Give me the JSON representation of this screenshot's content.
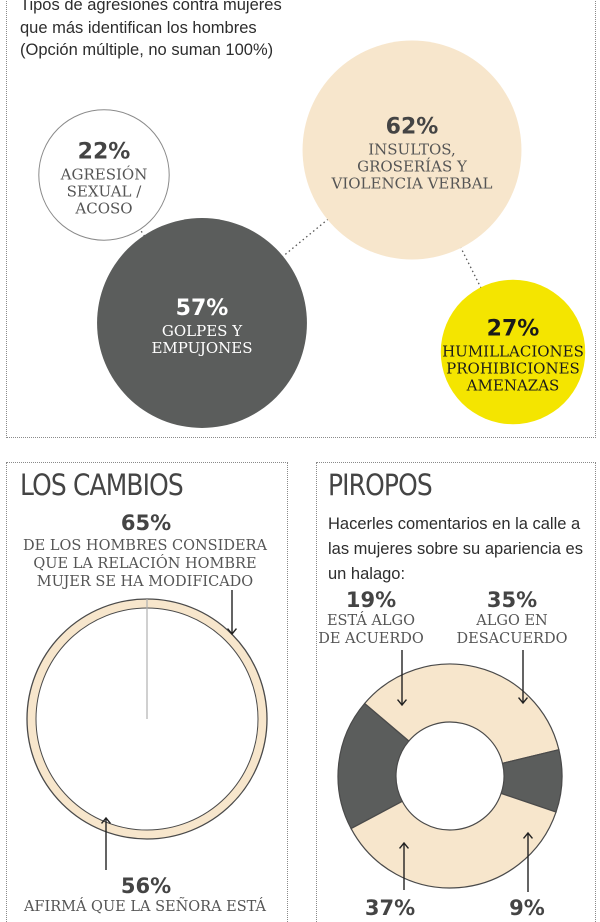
{
  "intro": "Tipos de agresiones contra mujeres que más identifican los hombres (Opción múltiple, no suman 100%)",
  "colors": {
    "beige": "#f7e6cc",
    "gray": "#5b5d5c",
    "yellow": "#f4e500",
    "white": "#ffffff"
  },
  "chart_data": [
    {
      "type": "bubble",
      "title": "",
      "items": [
        {
          "value": 22,
          "label": "22%",
          "lines": [
            "AGRESIÓN",
            "SEXUAL /",
            "ACOSO"
          ],
          "color": "#ffffff"
        },
        {
          "value": 62,
          "label": "62%",
          "lines": [
            "INSULTOS,",
            "GROSERÍAS Y",
            "VIOLENCIA VERBAL"
          ],
          "color": "#f7e6cc"
        },
        {
          "value": 57,
          "label": "57%",
          "lines": [
            "GOLPES Y",
            "EMPUJONES"
          ],
          "color": "#5b5d5c"
        },
        {
          "value": 27,
          "label": "27%",
          "lines": [
            "HUMILLACIONES",
            "PROHIBICIONES",
            "AMENAZAS"
          ],
          "color": "#f4e500"
        }
      ]
    },
    {
      "type": "pie",
      "title": "LOS CAMBIOS",
      "items": [
        {
          "value": 65,
          "label": "65%",
          "lines": [
            "DE LOS HOMBRES CONSIDERA",
            "QUE LA RELACIÓN HOMBRE",
            "MUJER SE HA MODIFICADO"
          ]
        },
        {
          "value": 56,
          "label": "56%",
          "lines": [
            "AFIRMÁ QUE LA SEÑORA ESTÁ"
          ]
        }
      ]
    },
    {
      "type": "donut",
      "title": "PIROPOS",
      "question": "Hacerles comentarios en la calle a las mujeres sobre su apariencia es un halago:",
      "items": [
        {
          "value": 19,
          "label": "19%",
          "lines": [
            "ESTÁ ALGO",
            "DE ACUERDO"
          ],
          "color": "#5b5d5c"
        },
        {
          "value": 35,
          "label": "35%",
          "lines": [
            "ALGO EN",
            "DESACUERDO"
          ],
          "color": "#f7e6cc"
        },
        {
          "value": 9,
          "label": "9%",
          "lines": [],
          "color": "#5b5d5c"
        },
        {
          "value": 37,
          "label": "37%",
          "lines": [],
          "color": "#f7e6cc"
        }
      ]
    }
  ]
}
